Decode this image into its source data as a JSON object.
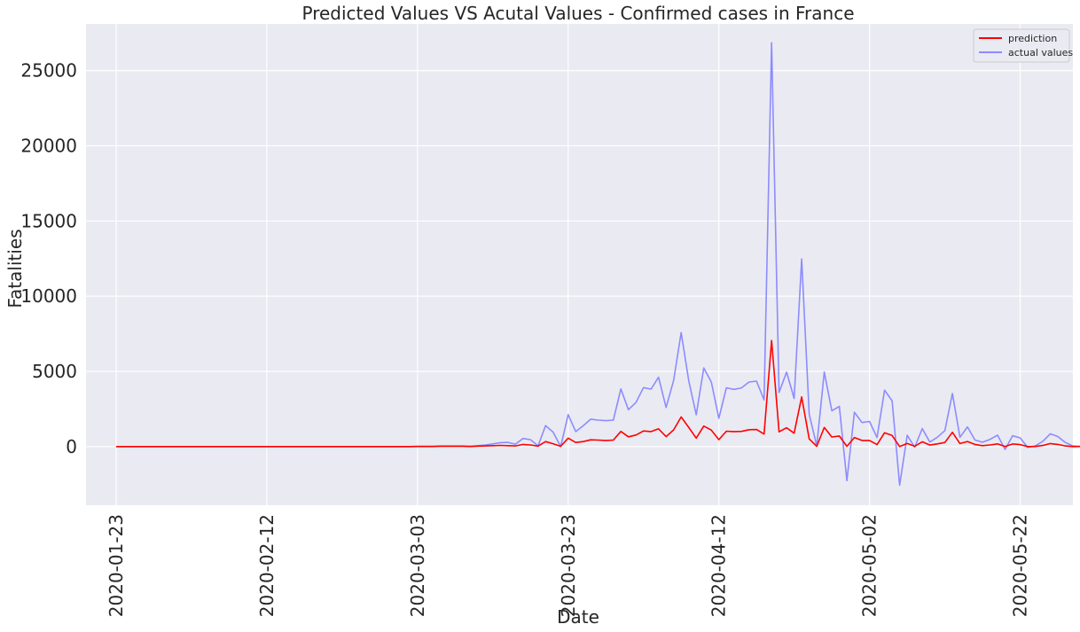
{
  "chart_data": {
    "type": "line",
    "title": "Predicted Values VS Acutal Values - Confirmed cases in France",
    "xlabel": "Date",
    "ylabel": "Fatalities",
    "x_start": "2020-01-23",
    "x_end": "2020-05-26",
    "xlim": [
      "2020-01-19",
      "2020-05-29"
    ],
    "ylim": [
      -3900,
      28100
    ],
    "x_ticks": [
      "2020-01-23",
      "2020-02-12",
      "2020-03-03",
      "2020-03-23",
      "2020-04-12",
      "2020-05-02",
      "2020-05-22"
    ],
    "y_ticks": [
      0,
      5000,
      10000,
      15000,
      20000,
      25000
    ],
    "grid": true,
    "legend_position": "top-right",
    "background": "#eaeaf2",
    "series": [
      {
        "name": "prediction",
        "color": "#ff0000",
        "values": [
          0,
          0,
          0,
          0,
          0,
          0,
          0,
          0,
          0,
          0,
          0,
          0,
          0,
          0,
          0,
          0,
          0,
          0,
          0,
          0,
          0,
          0,
          0,
          0,
          0,
          0,
          0,
          0,
          0,
          0,
          0,
          0,
          0,
          0,
          0,
          0,
          0,
          0,
          0,
          0,
          10,
          10,
          10,
          20,
          20,
          20,
          20,
          10,
          30,
          40,
          60,
          80,
          60,
          40,
          140,
          110,
          30,
          330,
          190,
          20,
          560,
          270,
          330,
          450,
          430,
          410,
          430,
          1010,
          650,
          770,
          1040,
          1000,
          1180,
          660,
          1110,
          1970,
          1280,
          560,
          1360,
          1100,
          460,
          1020,
          1000,
          1010,
          1120,
          1130,
          830,
          7050,
          980,
          1250,
          890,
          3300,
          510,
          20,
          1270,
          640,
          700,
          20,
          600,
          410,
          410,
          130,
          920,
          740,
          0,
          210,
          20,
          320,
          100,
          180,
          270,
          950,
          200,
          340,
          140,
          60,
          110,
          180,
          10,
          170,
          130,
          0,
          10,
          70,
          200,
          140,
          40,
          0,
          10,
          130,
          0
        ]
      },
      {
        "name": "actual values",
        "color": "#8c8cff",
        "values": [
          0,
          0,
          0,
          0,
          0,
          0,
          0,
          0,
          0,
          0,
          0,
          0,
          0,
          0,
          0,
          0,
          0,
          0,
          0,
          0,
          0,
          0,
          0,
          0,
          0,
          0,
          0,
          0,
          0,
          0,
          0,
          0,
          0,
          0,
          0,
          0,
          0,
          0,
          0,
          0,
          20,
          20,
          20,
          40,
          40,
          40,
          40,
          20,
          60,
          100,
          180,
          260,
          280,
          160,
          540,
          460,
          50,
          1390,
          960,
          0,
          2120,
          1000,
          1380,
          1820,
          1760,
          1720,
          1760,
          3830,
          2450,
          2930,
          3920,
          3820,
          4610,
          2600,
          4400,
          7580,
          4390,
          2110,
          5230,
          4290,
          1880,
          3910,
          3800,
          3900,
          4290,
          4350,
          3100,
          26850,
          3600,
          4950,
          3200,
          12470,
          2150,
          50,
          4960,
          2380,
          2670,
          -2270,
          2280,
          1600,
          1670,
          600,
          3750,
          3050,
          -2570,
          750,
          -40,
          1200,
          300,
          620,
          1060,
          3530,
          620,
          1310,
          440,
          290,
          480,
          760,
          -190,
          720,
          580,
          -60,
          50,
          350,
          850,
          670,
          270,
          40,
          10,
          530,
          0
        ]
      }
    ]
  }
}
